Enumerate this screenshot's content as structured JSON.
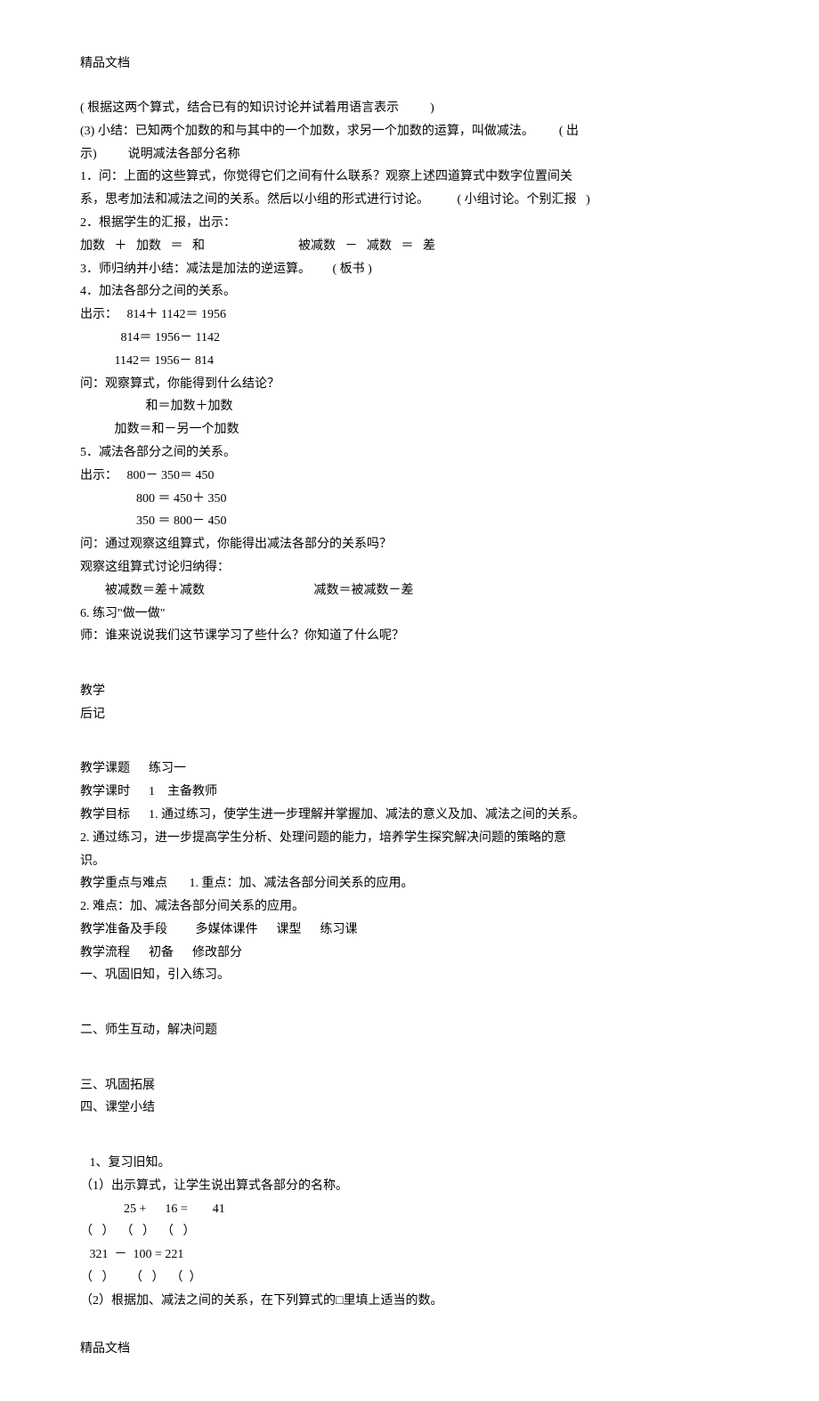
{
  "header": "精品文档",
  "footer": "精品文档",
  "lines": [
    {
      "text": "( 根据这两个算式，结合已有的知识讨论并试着用语言表示          )"
    },
    {
      "text": "(3) 小结：已知两个加数的和与其中的一个加数，求另一个加数的运算，叫做减法。        ( 出"
    },
    {
      "text": "示)          说明减法各部分名称"
    },
    {
      "text": "1．问：上面的这些算式，你觉得它们之间有什么联系？观察上述四道算式中数字位置间关"
    },
    {
      "text": "系，思考加法和减法之间的关系。然后以小组的形式进行讨论。         ( 小组讨论。个别汇报   )"
    },
    {
      "text": "2．根据学生的汇报，出示："
    },
    {
      "text": "加数   ＋   加数   ＝   和                              被减数   －   减数   ＝   差"
    },
    {
      "text": "3．师归纳并小结：减法是加法的逆运算。       ( 板书 )"
    },
    {
      "text": "4．加法各部分之间的关系。"
    },
    {
      "text": "出示：   814＋ 1142＝ 1956"
    },
    {
      "text": "             814＝ 1956－ 1142"
    },
    {
      "text": "           1142＝ 1956－ 814"
    },
    {
      "text": "问：观察算式，你能得到什么结论？"
    },
    {
      "text": "                     和＝加数＋加数"
    },
    {
      "text": "           加数＝和－另一个加数"
    },
    {
      "text": "5．减法各部分之间的关系。"
    },
    {
      "text": "出示：   800－ 350＝ 450"
    },
    {
      "text": "                  800 ＝ 450＋ 350"
    },
    {
      "text": "                  350 ＝ 800－ 450"
    },
    {
      "text": "问：通过观察这组算式，你能得出减法各部分的关系吗？"
    },
    {
      "text": "观察这组算式讨论归纳得："
    },
    {
      "text": "        被减数＝差＋减数                                   减数＝被减数－差"
    },
    {
      "text": "6. 练习\"做一做\""
    },
    {
      "text": "师：谁来说说我们这节课学习了些什么？你知道了什么呢？"
    },
    {
      "text": "",
      "gap": true
    },
    {
      "text": "教学"
    },
    {
      "text": "后记"
    },
    {
      "text": "",
      "gap": true
    },
    {
      "text": "教学课题      练习一"
    },
    {
      "text": "教学课时      1    主备教师"
    },
    {
      "text": "教学目标      1. 通过练习，使学生进一步理解并掌握加、减法的意义及加、减法之间的关系。"
    },
    {
      "text": "2. 通过练习，进一步提高学生分析、处理问题的能力，培养学生探究解决问题的策略的意"
    },
    {
      "text": "识。"
    },
    {
      "text": "教学重点与难点       1. 重点：加、减法各部分间关系的应用。"
    },
    {
      "text": "2. 难点：加、减法各部分间关系的应用。"
    },
    {
      "text": "教学准备及手段         多媒体课件      课型      练习课"
    },
    {
      "text": "教学流程      初备      修改部分"
    },
    {
      "text": "一、巩固旧知，引入练习。"
    },
    {
      "text": "",
      "gap": true
    },
    {
      "text": "二、师生互动，解决问题"
    },
    {
      "text": "",
      "gap": true
    },
    {
      "text": "三、巩固拓展"
    },
    {
      "text": "四、课堂小结"
    },
    {
      "text": "",
      "gap": true
    },
    {
      "text": "   1、复习旧知。"
    },
    {
      "text": "（1）出示算式，让学生说出算式各部分的名称。"
    },
    {
      "text": "              25 +      16 =        41"
    },
    {
      "text": "（   ）  （   ）  （   ）"
    },
    {
      "text": "   321  －  100 = 221"
    },
    {
      "text": "（   ）     （   ）  （  ）"
    },
    {
      "text": "（2）根据加、减法之间的关系，在下列算式的□里填上适当的数。"
    }
  ]
}
